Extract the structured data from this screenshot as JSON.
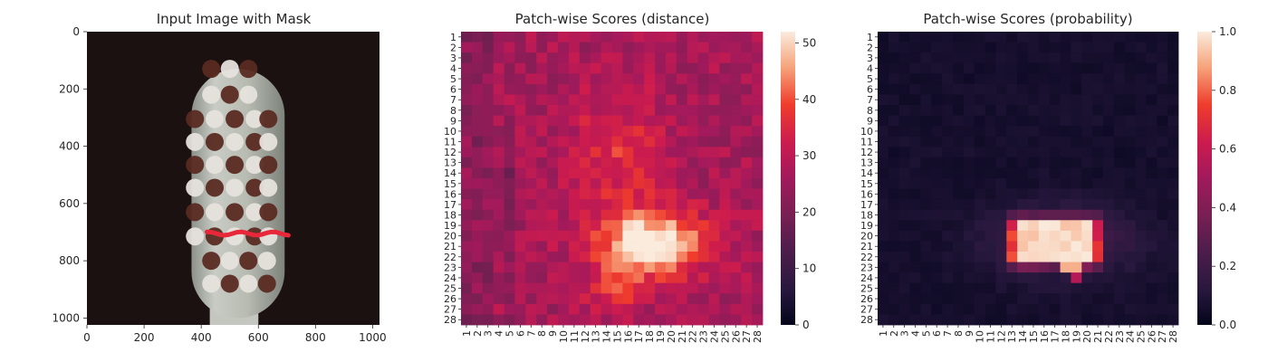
{
  "chart_data": [
    {
      "type": "image",
      "title": "Input Image with Mask",
      "xlim": [
        0,
        1024
      ],
      "ylim": [
        1024,
        0
      ],
      "xticks": [
        0,
        200,
        400,
        600,
        800,
        1000
      ],
      "yticks": [
        0,
        200,
        400,
        600,
        800,
        1000
      ],
      "colors": {
        "background": "#1a1110",
        "brush_body": "#bfc3bb",
        "mask": "#e8283a",
        "tuft_light": "#e6e2dc",
        "tuft_dark": "#5a2b22"
      }
    },
    {
      "type": "heatmap",
      "title": "Patch-wise Scores (distance)",
      "grid": [
        28,
        28
      ],
      "x_categories": [
        "1",
        "2",
        "3",
        "4",
        "5",
        "6",
        "7",
        "8",
        "9",
        "10",
        "11",
        "12",
        "13",
        "14",
        "15",
        "16",
        "17",
        "18",
        "19",
        "20",
        "21",
        "22",
        "23",
        "24",
        "25",
        "26",
        "27",
        "28"
      ],
      "y_categories": [
        "1",
        "2",
        "3",
        "4",
        "5",
        "6",
        "7",
        "8",
        "9",
        "10",
        "11",
        "12",
        "13",
        "14",
        "15",
        "16",
        "17",
        "18",
        "19",
        "20",
        "21",
        "22",
        "23",
        "24",
        "25",
        "26",
        "27",
        "28"
      ],
      "colorbar": {
        "min": 0,
        "max": 52,
        "ticks": [
          0,
          10,
          20,
          30,
          40,
          50
        ]
      },
      "colors": {
        "colormap": "rocket"
      }
    },
    {
      "type": "heatmap",
      "title": "Patch-wise Scores (probability)",
      "grid": [
        28,
        28
      ],
      "x_categories": [
        "1",
        "2",
        "3",
        "4",
        "5",
        "6",
        "7",
        "8",
        "9",
        "10",
        "11",
        "12",
        "13",
        "14",
        "15",
        "16",
        "17",
        "18",
        "19",
        "20",
        "21",
        "22",
        "23",
        "24",
        "25",
        "26",
        "27",
        "28"
      ],
      "y_categories": [
        "1",
        "2",
        "3",
        "4",
        "5",
        "6",
        "7",
        "8",
        "9",
        "10",
        "11",
        "12",
        "13",
        "14",
        "15",
        "16",
        "17",
        "18",
        "19",
        "20",
        "21",
        "22",
        "23",
        "24",
        "25",
        "26",
        "27",
        "28"
      ],
      "colorbar": {
        "min": 0.0,
        "max": 1.0,
        "ticks": [
          "0.0",
          "0.2",
          "0.4",
          "0.6",
          "0.8",
          "1.0"
        ]
      },
      "colors": {
        "colormap": "rocket"
      }
    }
  ]
}
